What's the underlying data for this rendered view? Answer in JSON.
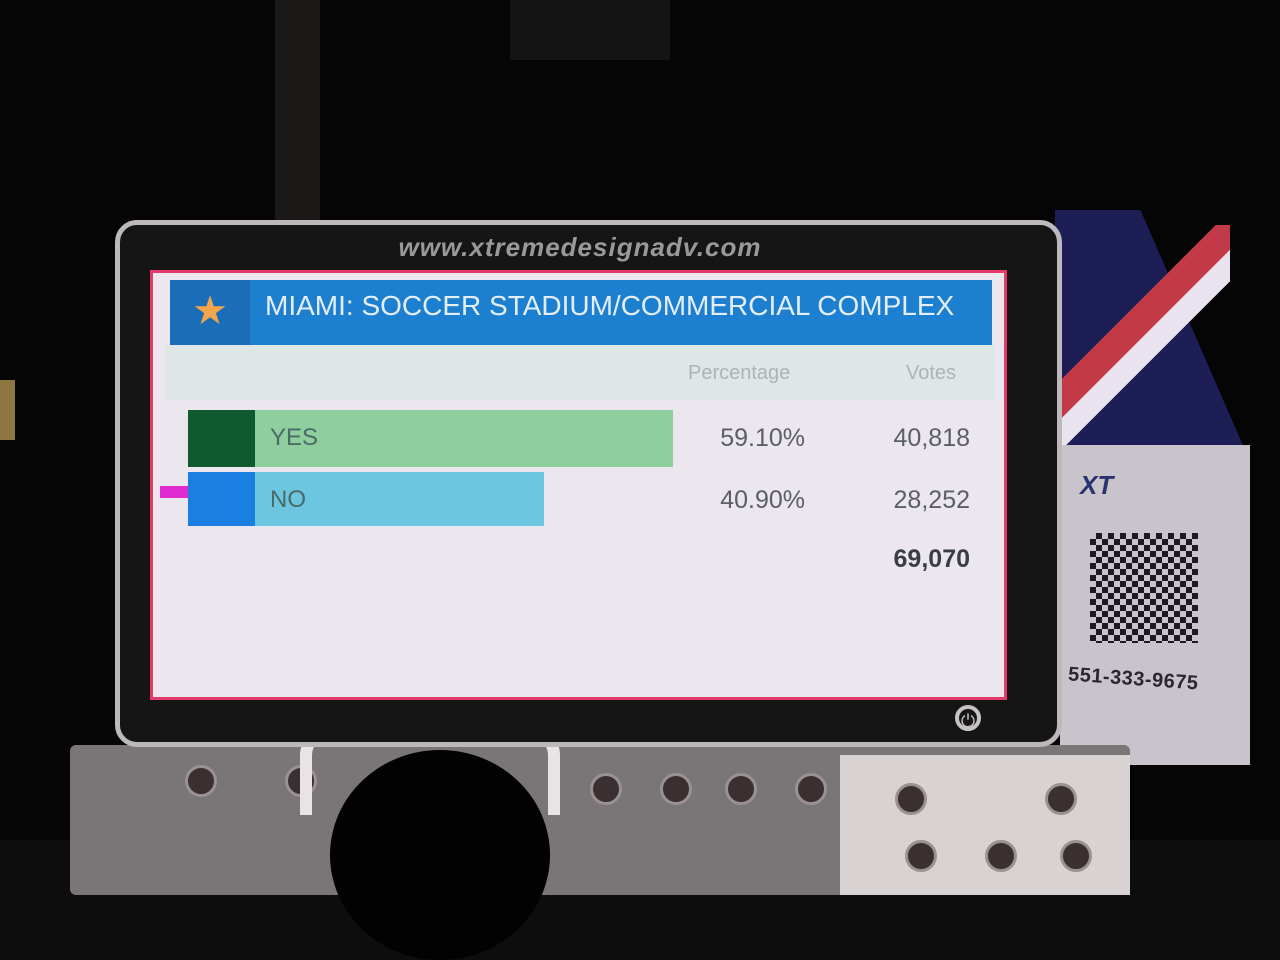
{
  "billboard": {
    "url": "www.xtremedesignadv.com",
    "power_icon": "power-icon",
    "display": {
      "star_icon": "star-icon",
      "title": "MIAMI: SOCCER STADIUM/COMMERCIAL COMPLEX",
      "columns": {
        "percentage": "Percentage",
        "votes": "Votes"
      },
      "rows": [
        {
          "label": "YES",
          "percentage": "59.10%",
          "votes": "40,818",
          "share": 59.1,
          "swatch_color": "#0f5a2e",
          "bar_color": "#8fcf9f"
        },
        {
          "label": "NO",
          "percentage": "40.90%",
          "votes": "28,252",
          "share": 40.9,
          "swatch_color": "#1a7fe0",
          "bar_color": "#6cc6e0"
        }
      ],
      "total_votes": "69,070",
      "header_color": "#1d7fd0"
    }
  },
  "side_panel": {
    "logo": "XT",
    "phone": "551-333-9675"
  }
}
